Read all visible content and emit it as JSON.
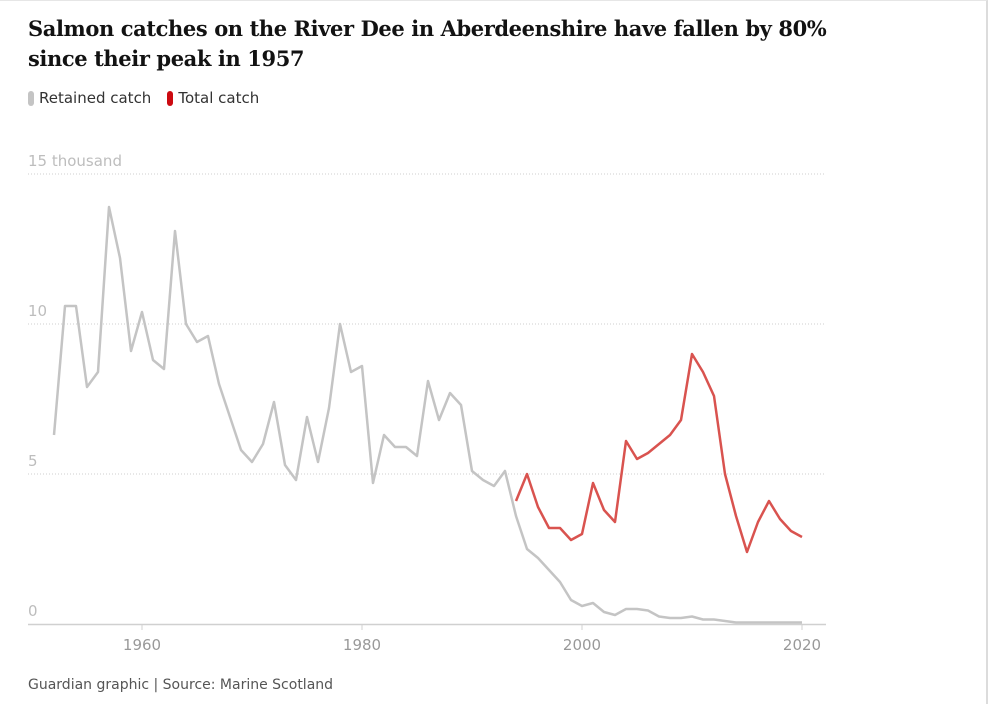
{
  "title": "Salmon catches on the River Dee in Aberdeenshire have fallen by 80% since their peak in 1957",
  "footer": "Guardian graphic | Source: Marine Scotland",
  "chart_data": {
    "type": "line",
    "title": "Salmon catches on the River Dee in Aberdeenshire have fallen by 80% since their peak in 1957",
    "xlim": [
      1950.5,
      2021
    ],
    "ylim": [
      0,
      15
    ],
    "y_ticks": [
      {
        "v": 0,
        "label": "0"
      },
      {
        "v": 5,
        "label": "5"
      },
      {
        "v": 10,
        "label": "10"
      },
      {
        "v": 15,
        "label": "15 thousand"
      }
    ],
    "x_ticks": [
      {
        "v": 1960,
        "label": "1960"
      },
      {
        "v": 1980,
        "label": "1980"
      },
      {
        "v": 2000,
        "label": "2000"
      },
      {
        "v": 2020,
        "label": "2020"
      }
    ],
    "grid": true,
    "legend_position": "top-left",
    "series": [
      {
        "name": "Retained catch",
        "color": "#c4c4c4",
        "x": [
          1952,
          1953,
          1954,
          1955,
          1956,
          1957,
          1958,
          1959,
          1960,
          1961,
          1962,
          1963,
          1964,
          1965,
          1966,
          1967,
          1968,
          1969,
          1970,
          1971,
          1972,
          1973,
          1974,
          1975,
          1976,
          1977,
          1978,
          1979,
          1980,
          1981,
          1982,
          1983,
          1984,
          1985,
          1986,
          1987,
          1988,
          1989,
          1990,
          1991,
          1992,
          1993,
          1994,
          1995,
          1996,
          1997,
          1998,
          1999,
          2000,
          2001,
          2002,
          2003,
          2004,
          2005,
          2006,
          2007,
          2008,
          2009,
          2010,
          2011,
          2012,
          2013,
          2014,
          2015,
          2016,
          2017,
          2018,
          2019,
          2020
        ],
        "values": [
          6.3,
          10.6,
          10.6,
          7.9,
          8.4,
          13.9,
          12.2,
          9.1,
          10.4,
          8.8,
          8.5,
          13.1,
          10.0,
          9.4,
          9.6,
          8.0,
          6.9,
          5.8,
          5.4,
          6.0,
          7.4,
          5.3,
          4.8,
          6.9,
          5.4,
          7.2,
          10.0,
          8.4,
          8.6,
          4.7,
          6.3,
          5.9,
          5.9,
          5.6,
          8.1,
          6.8,
          7.7,
          7.3,
          5.1,
          4.8,
          4.6,
          5.1,
          3.6,
          2.5,
          2.2,
          1.8,
          1.4,
          0.8,
          0.6,
          0.7,
          0.4,
          0.3,
          0.5,
          0.5,
          0.45,
          0.25,
          0.2,
          0.2,
          0.25,
          0.15,
          0.15,
          0.1,
          0.05,
          0.05,
          0.05,
          0.05,
          0.05,
          0.05,
          0.05
        ]
      },
      {
        "name": "Total catch",
        "color": "#d9534f",
        "x": [
          1994,
          1995,
          1996,
          1997,
          1998,
          1999,
          2000,
          2001,
          2002,
          2003,
          2004,
          2005,
          2006,
          2007,
          2008,
          2009,
          2010,
          2011,
          2012,
          2013,
          2014,
          2015,
          2016,
          2017,
          2018,
          2019,
          2020
        ],
        "values": [
          4.1,
          5.0,
          3.9,
          3.2,
          3.2,
          2.8,
          3.0,
          4.7,
          3.8,
          3.4,
          6.1,
          5.5,
          5.7,
          6.0,
          6.3,
          6.8,
          9.0,
          8.4,
          7.6,
          5.0,
          3.6,
          2.4,
          3.4,
          4.1,
          3.5,
          3.1,
          2.9
        ]
      }
    ]
  }
}
